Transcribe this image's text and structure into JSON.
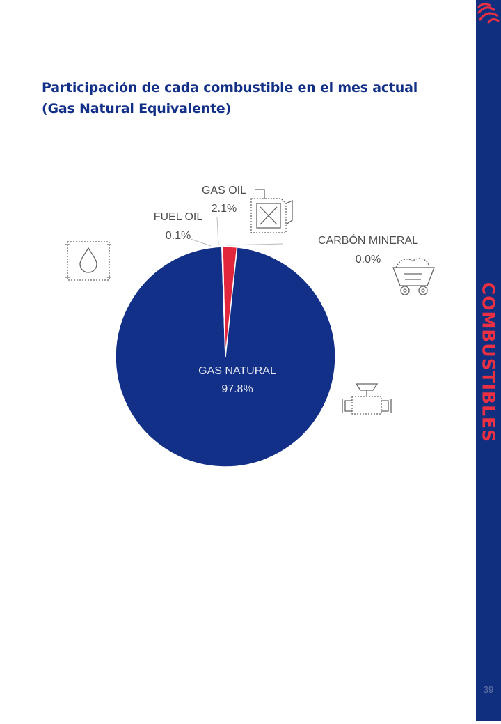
{
  "page": {
    "title_line1": "Participación de cada combustible en el mes actual",
    "title_line2": "(Gas Natural Equivalente)",
    "section_label": "COMBUSTIBLES",
    "page_number": "39"
  },
  "colors": {
    "brand_blue": "#123087",
    "accent_red": "#e2273d",
    "label_gray": "#4d4d4d"
  },
  "icons": [
    "fuel-drop-icon",
    "fuel-can-icon",
    "coal-cart-icon",
    "gas-pipe-icon",
    "brand-logo-icon"
  ],
  "chart_data": {
    "type": "pie",
    "categories": [
      "GAS NATURAL",
      "FUEL OIL",
      "GAS OIL",
      "CARBÓN MINERAL"
    ],
    "values": [
      97.8,
      0.1,
      2.1,
      0.0
    ],
    "value_labels": [
      "97.8%",
      "0.1%",
      "2.1%",
      "0.0%"
    ],
    "colors": [
      "#123087",
      "#123087",
      "#e2273d",
      "#123087"
    ],
    "title": "Participación de cada combustible en el mes actual (Gas Natural Equivalente)",
    "legend": "none"
  }
}
